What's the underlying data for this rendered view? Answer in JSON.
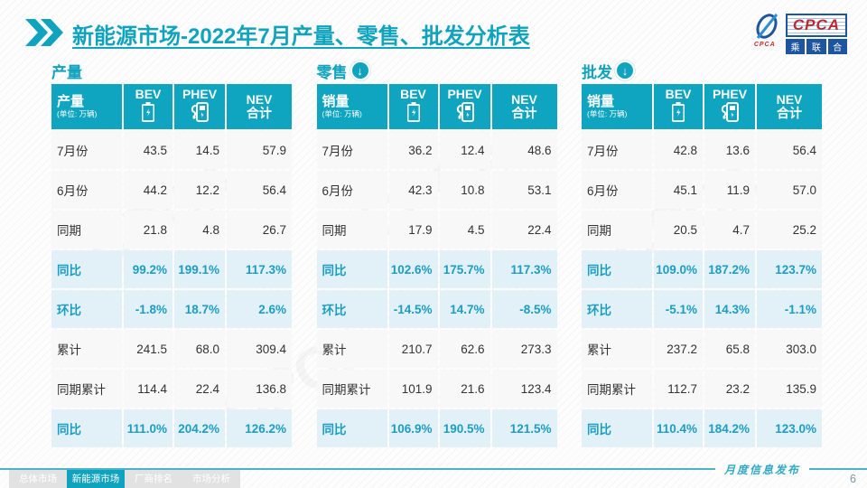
{
  "header": {
    "title_highlight": "新能源市场",
    "title_rest": "-2022年7月产量、零售、批发分析表",
    "logo": {
      "acronym": "CPCA",
      "small_text": "CPCA",
      "chinese_chars": [
        "乘",
        "联",
        "合"
      ]
    }
  },
  "shared": {
    "col_bev": "BEV",
    "col_phev": "PHEV",
    "col_nev_line1": "NEV",
    "col_nev_line2": "合计",
    "unit": "(单位: 万辆)"
  },
  "colors": {
    "teal": "#0FA4BF",
    "teal_text": "#1B9DC4",
    "highlight_bg": "#E2F0F7",
    "logo_blue": "#1E55A0",
    "logo_red": "#C2272D"
  },
  "tables": [
    {
      "section_title": "产量",
      "has_arrow": false,
      "header_label": "产量",
      "rows": [
        {
          "label": "7月份",
          "values": [
            "43.5",
            "14.5",
            "57.9"
          ],
          "highlight": false
        },
        {
          "label": "6月份",
          "values": [
            "44.2",
            "12.2",
            "56.4"
          ],
          "highlight": false
        },
        {
          "label": "同期",
          "values": [
            "21.8",
            "4.8",
            "26.7"
          ],
          "highlight": false
        },
        {
          "label": "同比",
          "values": [
            "99.2%",
            "199.1%",
            "117.3%"
          ],
          "highlight": true
        },
        {
          "label": "环比",
          "values": [
            "-1.8%",
            "18.7%",
            "2.6%"
          ],
          "highlight": true
        },
        {
          "label": "累计",
          "values": [
            "241.5",
            "68.0",
            "309.4"
          ],
          "highlight": false
        },
        {
          "label": "同期累计",
          "values": [
            "114.4",
            "22.4",
            "136.8"
          ],
          "highlight": false
        },
        {
          "label": "同比",
          "values": [
            "111.0%",
            "204.2%",
            "126.2%"
          ],
          "highlight": true
        }
      ]
    },
    {
      "section_title": "零售",
      "has_arrow": true,
      "header_label": "销量",
      "rows": [
        {
          "label": "7月份",
          "values": [
            "36.2",
            "12.4",
            "48.6"
          ],
          "highlight": false
        },
        {
          "label": "6月份",
          "values": [
            "42.3",
            "10.8",
            "53.1"
          ],
          "highlight": false
        },
        {
          "label": "同期",
          "values": [
            "17.9",
            "4.5",
            "22.4"
          ],
          "highlight": false
        },
        {
          "label": "同比",
          "values": [
            "102.6%",
            "175.7%",
            "117.3%"
          ],
          "highlight": true
        },
        {
          "label": "环比",
          "values": [
            "-14.5%",
            "14.7%",
            "-8.5%"
          ],
          "highlight": true
        },
        {
          "label": "累计",
          "values": [
            "210.7",
            "62.6",
            "273.3"
          ],
          "highlight": false
        },
        {
          "label": "同期累计",
          "values": [
            "101.9",
            "21.6",
            "123.4"
          ],
          "highlight": false
        },
        {
          "label": "同比",
          "values": [
            "106.9%",
            "190.5%",
            "121.5%"
          ],
          "highlight": true
        }
      ]
    },
    {
      "section_title": "批发",
      "has_arrow": true,
      "header_label": "销量",
      "rows": [
        {
          "label": "7月份",
          "values": [
            "42.8",
            "13.6",
            "56.4"
          ],
          "highlight": false
        },
        {
          "label": "6月份",
          "values": [
            "45.1",
            "11.9",
            "57.0"
          ],
          "highlight": false
        },
        {
          "label": "同期",
          "values": [
            "20.5",
            "4.7",
            "25.2"
          ],
          "highlight": false
        },
        {
          "label": "同比",
          "values": [
            "109.0%",
            "187.2%",
            "123.7%"
          ],
          "highlight": true
        },
        {
          "label": "环比",
          "values": [
            "-5.1%",
            "14.3%",
            "-1.1%"
          ],
          "highlight": true
        },
        {
          "label": "累计",
          "values": [
            "237.2",
            "65.8",
            "303.0"
          ],
          "highlight": false
        },
        {
          "label": "同期累计",
          "values": [
            "112.7",
            "23.2",
            "135.9"
          ],
          "highlight": false
        },
        {
          "label": "同比",
          "values": [
            "110.4%",
            "184.2%",
            "123.0%"
          ],
          "highlight": true
        }
      ]
    }
  ],
  "footer": {
    "tabs": [
      {
        "label": "总体市场",
        "active": false
      },
      {
        "label": "新能源市场",
        "active": true
      },
      {
        "label": "厂商排名",
        "active": false
      },
      {
        "label": "市场分析",
        "active": false
      }
    ],
    "release_label": "月度信息发布",
    "page_number": "6"
  },
  "watermark_text": "CPCA"
}
